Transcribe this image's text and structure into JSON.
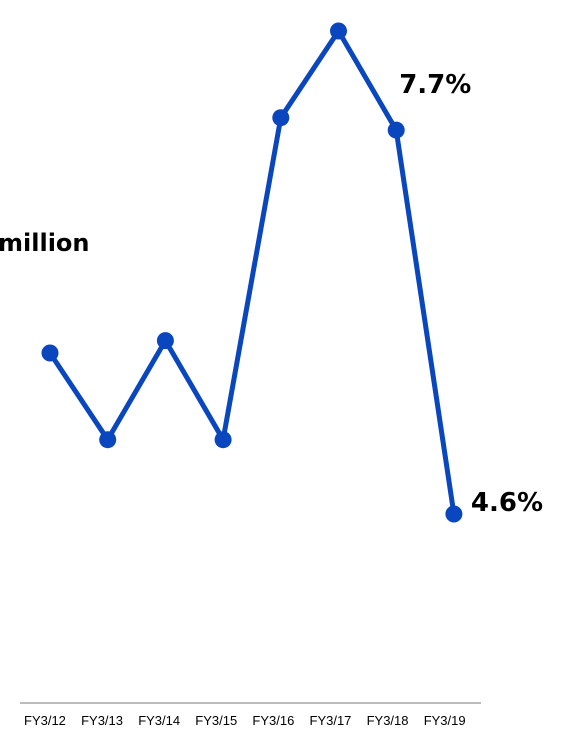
{
  "chart_data": {
    "type": "line",
    "categories": [
      "FY3/12",
      "FY3/13",
      "FY3/14",
      "FY3/15",
      "FY3/16",
      "FY3/17",
      "FY3/18",
      "FY3/19"
    ],
    "series": [
      {
        "values": [
          5.9,
          5.2,
          6.0,
          5.2,
          7.8,
          8.5,
          7.7,
          4.6
        ]
      }
    ],
    "ylim": [
      3.0,
      9.0
    ],
    "data_labels": [
      {
        "index": 6,
        "text": "7.7%"
      },
      {
        "index": 7,
        "text": "4.6%"
      }
    ],
    "annotations": [
      "million"
    ],
    "grid": false,
    "legend": "none",
    "colors": {
      "line": "#0a46be",
      "axis": "#a6a6a6",
      "text": "#000000"
    }
  }
}
